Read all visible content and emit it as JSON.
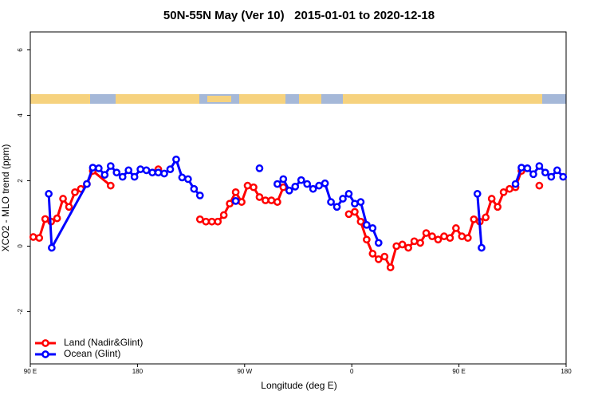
{
  "chart_data": {
    "type": "line",
    "title": "50N-55N May (Ver 10)   2015-01-01 to 2020-12-18",
    "x_label": "Longitude (deg E)",
    "y_label": "XCO2 - MLO trend (ppm)",
    "xlim": [
      90,
      540
    ],
    "xticks": [
      {
        "value": 90,
        "label": "90 E"
      },
      180,
      {
        "value": 270,
        "label": "90 W"
      },
      {
        "value": 360,
        "label": "0"
      },
      {
        "value": 450,
        "label": "90 E"
      },
      {
        "value": 540,
        "label": "180"
      }
    ],
    "ylim": [
      -3.6,
      6.55
    ],
    "yticks": [
      -2,
      0,
      2,
      4,
      6
    ],
    "legend": "bottom-left",
    "series": [
      {
        "name": "Land (Nadir&Glint)",
        "color": "#ff0000",
        "x": [
          92.5,
          97.5,
          102.5,
          107.5,
          112.5,
          117.5,
          122.5,
          127.5,
          132.5,
          137.5,
          142.5,
          157.5,
          null,
          197.5,
          null,
          232.5,
          237.5,
          242.5,
          247.5,
          252.5,
          257.5,
          262.5,
          267.5,
          272.5,
          277.5,
          282.5,
          287.5,
          292.5,
          297.5,
          302.5,
          null,
          357.5,
          362.5,
          367.5,
          372.5,
          377.5,
          382.5,
          387.5,
          392.5,
          397.5,
          402.5,
          407.5,
          412.5,
          417.5,
          422.5,
          427.5,
          432.5,
          437.5,
          442.5,
          447.5,
          452.5,
          457.5,
          462.5,
          467.5,
          472.5,
          477.5,
          482.5,
          487.5,
          492.5,
          497.5,
          502.5,
          null,
          517.5
        ],
        "values": [
          0.28,
          0.25,
          0.83,
          0.75,
          0.85,
          1.45,
          1.2,
          1.65,
          1.75,
          1.9,
          2.3,
          1.85,
          null,
          2.35,
          null,
          0.82,
          0.75,
          0.75,
          0.75,
          0.95,
          1.3,
          1.65,
          1.35,
          1.85,
          1.8,
          1.5,
          1.4,
          1.4,
          1.35,
          1.8,
          null,
          0.98,
          1.05,
          0.75,
          0.2,
          -0.23,
          -0.4,
          -0.32,
          -0.65,
          0.0,
          0.05,
          -0.05,
          0.15,
          0.1,
          0.4,
          0.3,
          0.2,
          0.3,
          0.25,
          0.55,
          0.3,
          0.25,
          0.82,
          0.75,
          0.88,
          1.45,
          1.2,
          1.65,
          1.75,
          1.8,
          2.3,
          null,
          1.85
        ]
      },
      {
        "name": "Ocean (Glint)",
        "color": "#0000ff",
        "x": [
          105.5,
          108,
          137.5,
          142.5,
          147.5,
          152.5,
          157.5,
          162.5,
          167.5,
          172.5,
          177.5,
          182.5,
          187.5,
          192.5,
          197.5,
          202.5,
          207.5,
          212.5,
          217.5,
          222.5,
          227.5,
          232.5,
          null,
          262.5,
          null,
          282.5,
          null,
          297.5,
          302.5,
          307.5,
          312.5,
          317.5,
          322.5,
          327.5,
          332.5,
          337.5,
          342.5,
          347.5,
          352.5,
          357.5,
          362.5,
          367.5,
          372.5,
          377.5,
          382.5,
          null,
          465.5,
          469,
          null,
          497.5,
          502.5,
          507.5,
          512.5,
          517.5,
          522.5,
          527.5,
          532.5,
          537.5
        ],
        "values": [
          1.6,
          -0.05,
          1.9,
          2.4,
          2.38,
          2.18,
          2.45,
          2.25,
          2.12,
          2.32,
          2.12,
          2.35,
          2.32,
          2.25,
          2.25,
          2.22,
          2.35,
          2.65,
          2.1,
          2.05,
          1.75,
          1.55,
          null,
          1.38,
          null,
          2.38,
          null,
          1.9,
          2.05,
          1.7,
          1.82,
          2.02,
          1.9,
          1.75,
          1.85,
          1.92,
          1.35,
          1.2,
          1.45,
          1.6,
          1.3,
          1.35,
          0.65,
          0.55,
          0.1,
          null,
          1.6,
          -0.05,
          null,
          1.9,
          2.4,
          2.38,
          2.2,
          2.45,
          2.25,
          2.12,
          2.32,
          2.12
        ]
      }
    ]
  }
}
